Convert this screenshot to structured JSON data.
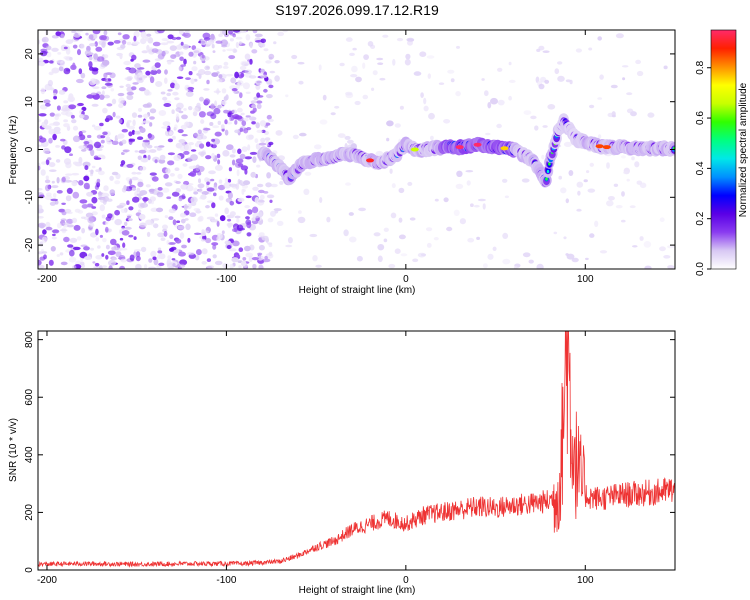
{
  "figure": {
    "title": "S197.2026.099.17.12.R19"
  },
  "colors": {
    "snr_line": "#ee3333",
    "background": "#ffffff",
    "frame": "#000000"
  },
  "chart_data": [
    {
      "type": "heatmap",
      "title": "S197.2026.099.17.12.R19",
      "xlabel": "Height of straight line (km)",
      "ylabel": "Frequency (Hz)",
      "xlim": [
        -205,
        150
      ],
      "ylim": [
        -25,
        25
      ],
      "xticks": [
        -200,
        -100,
        0,
        100
      ],
      "yticks": [
        -20,
        -10,
        0,
        10,
        20
      ],
      "grid": false,
      "colorbar": {
        "label": "Normalized spectral amplitude",
        "range": [
          0,
          0.95
        ],
        "ticks": [
          0.0,
          0.2,
          0.4,
          0.6,
          0.8
        ],
        "colormap": [
          "#ffffff",
          "#d8c8f4",
          "#8a3cf0",
          "#5a00e6",
          "#0000ff",
          "#0090ff",
          "#00e8e8",
          "#00ff80",
          "#30ff00",
          "#c8ff00",
          "#ffff00",
          "#ff9000",
          "#ff2000",
          "#ff2a6a"
        ]
      },
      "ridge": {
        "description_points_x": [
          -78,
          -72,
          -65,
          -58,
          -50,
          -42,
          -35,
          -28,
          -22,
          -15,
          -10,
          -5,
          0,
          5,
          10,
          20,
          30,
          40,
          50,
          60,
          65,
          70,
          72,
          75,
          78,
          80,
          82,
          85,
          88,
          90,
          93,
          96,
          100,
          105,
          110,
          120,
          130,
          140,
          150
        ],
        "description_points_y": [
          -1,
          -3,
          -6,
          -3,
          -2,
          -2,
          -1,
          -1,
          -2,
          -3,
          -2,
          -1,
          1,
          0,
          0,
          0.5,
          0.5,
          1,
          0.5,
          0,
          -1,
          -2,
          -3,
          -5,
          -7,
          -3,
          0,
          4,
          6,
          5,
          3,
          2,
          1.5,
          1,
          0.5,
          0.5,
          0.3,
          0.2,
          0.2
        ],
        "peak_amplitude": 0.95
      }
    },
    {
      "type": "line",
      "xlabel": "Height of straight line (km)",
      "ylabel": "SNR (10 * v/v)",
      "xlim": [
        -205,
        150
      ],
      "ylim": [
        0,
        830
      ],
      "xticks": [
        -200,
        -100,
        0,
        100
      ],
      "yticks": [
        0,
        200,
        400,
        600,
        800
      ],
      "grid": false,
      "series": [
        {
          "color": "#ee3333",
          "x": [
            -205,
            -180,
            -150,
            -120,
            -90,
            -70,
            -60,
            -50,
            -40,
            -30,
            -20,
            -10,
            0,
            10,
            20,
            30,
            40,
            50,
            60,
            70,
            75,
            80,
            84,
            86,
            88,
            90,
            92,
            94,
            96,
            98,
            100,
            105,
            110,
            120,
            130,
            140,
            150
          ],
          "values": [
            20,
            22,
            20,
            22,
            22,
            30,
            50,
            80,
            100,
            140,
            160,
            180,
            160,
            190,
            200,
            210,
            220,
            215,
            225,
            230,
            235,
            240,
            260,
            300,
            560,
            820,
            520,
            400,
            340,
            300,
            260,
            250,
            250,
            260,
            265,
            270,
            280
          ]
        }
      ]
    }
  ]
}
